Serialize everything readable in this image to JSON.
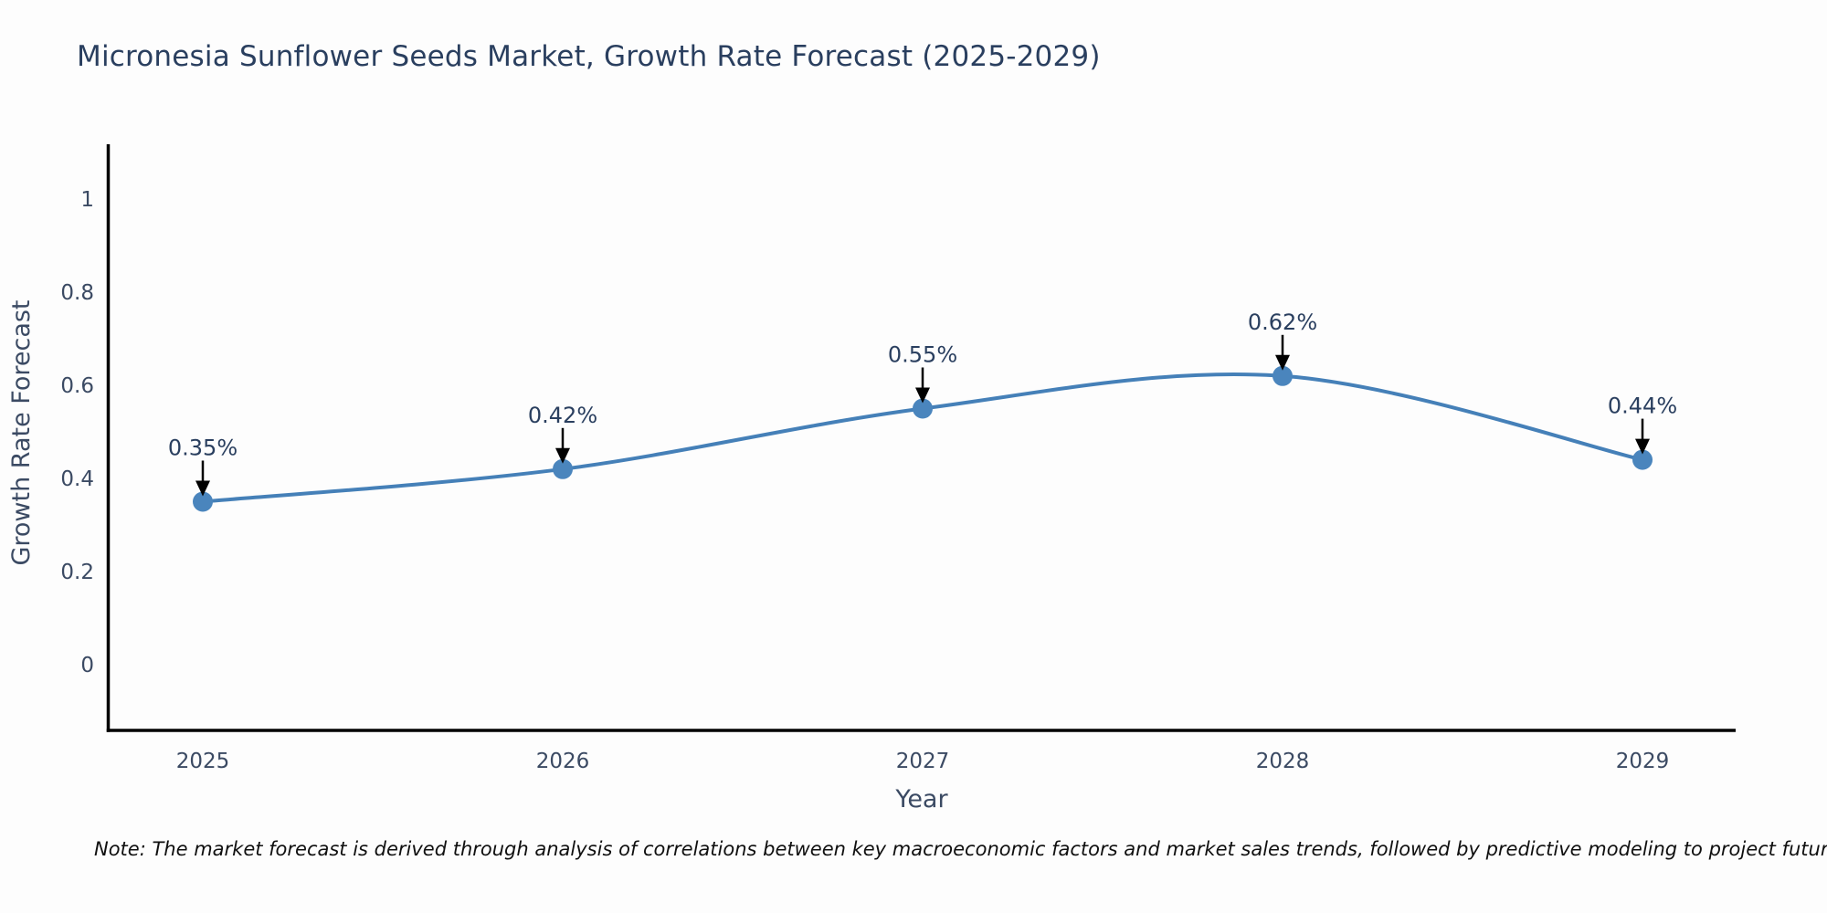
{
  "title": "Micronesia Sunflower Seeds Market, Growth Rate Forecast (2025-2029)",
  "note": "Note: The market forecast is derived through analysis of correlations between key macroeconomic factors and market sales trends, followed by predictive modeling to project future sales",
  "colors": {
    "background": "#fdfdfd",
    "title": "#2a3f5f",
    "tick": "#3b4a63",
    "axis_title": "#3b4a63",
    "axis_line": "#000000",
    "series_line": "#4580b8",
    "marker_fill": "#4a85bd",
    "annotation_text": "#2a3f5f",
    "arrow": "#000000"
  },
  "chart_data": {
    "type": "line",
    "title": "Micronesia Sunflower Seeds Market, Growth Rate Forecast (2025-2029)",
    "categories": [
      "2025",
      "2026",
      "2027",
      "2028",
      "2029"
    ],
    "series": [
      {
        "name": "Growth Rate Forecast",
        "values": [
          0.35,
          0.42,
          0.55,
          0.62,
          0.44
        ],
        "point_labels": [
          "0.35%",
          "0.42%",
          "0.55%",
          "0.62%",
          "0.44%"
        ]
      }
    ],
    "xlabel": "Year",
    "ylabel": "Growth Rate Forecast",
    "yticks": [
      0,
      0.2,
      0.4,
      0.6,
      0.8,
      1
    ],
    "ylim": [
      -0.14,
      1.12
    ],
    "grid": false,
    "legend": false,
    "line_shape": "spline",
    "marker": "circle",
    "annotations": "value labels with downward arrows above each point"
  }
}
